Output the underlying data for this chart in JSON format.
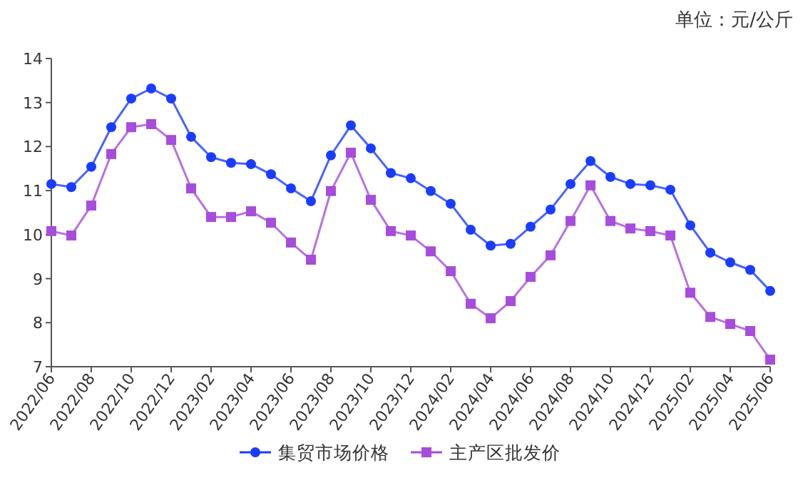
{
  "chart_data": {
    "type": "line",
    "annotations": [
      "单位：元/公斤"
    ],
    "categories": [
      "2022/06",
      null,
      "2022/08",
      null,
      "2022/10",
      null,
      "2022/12",
      null,
      "2023/02",
      null,
      "2023/04",
      null,
      "2023/06",
      null,
      "2023/08",
      null,
      "2023/10",
      null,
      "2023/12",
      null,
      "2024/02",
      null,
      "2024/04",
      null,
      "2024/06",
      null,
      "2024/08",
      null,
      "2024/10",
      null,
      "2024/12",
      null,
      "2025/02",
      null,
      "2025/04",
      null,
      "2025/06"
    ],
    "series": [
      {
        "name": "集贸市场价格",
        "color": "#1a3cff",
        "marker": "circle",
        "values": [
          11.15,
          11.08,
          11.54,
          12.44,
          13.09,
          13.32,
          13.09,
          12.22,
          11.76,
          11.63,
          11.6,
          11.37,
          11.05,
          10.76,
          11.8,
          12.48,
          11.96,
          11.4,
          11.28,
          10.99,
          10.7,
          10.11,
          9.75,
          9.79,
          10.18,
          10.57,
          11.15,
          11.67,
          11.31,
          11.15,
          11.12,
          11.02,
          10.21,
          9.59,
          9.37,
          9.2,
          8.72
        ]
      },
      {
        "name": "主产区批发价",
        "color": "#a64ddb",
        "marker": "square",
        "values": [
          10.08,
          9.98,
          10.66,
          11.83,
          12.44,
          12.51,
          12.15,
          11.05,
          10.4,
          10.4,
          10.53,
          10.27,
          9.82,
          9.43,
          10.99,
          11.86,
          10.79,
          10.08,
          9.98,
          9.62,
          9.17,
          8.43,
          8.1,
          8.49,
          9.04,
          9.53,
          10.31,
          11.12,
          10.31,
          10.14,
          10.08,
          9.98,
          8.68,
          8.13,
          7.97,
          7.81,
          7.16
        ]
      }
    ],
    "ylim": [
      7,
      14
    ],
    "yticks": [
      7,
      8,
      9,
      10,
      11,
      12,
      13,
      14
    ],
    "grid": false,
    "legend": "bottom"
  }
}
